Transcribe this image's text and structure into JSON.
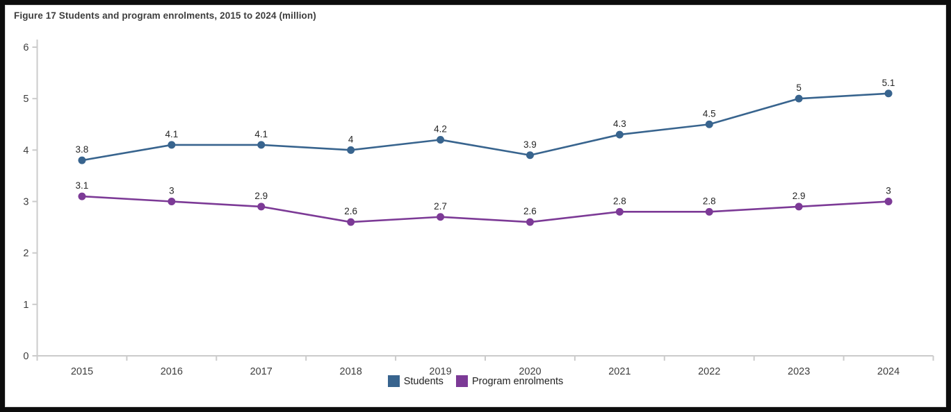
{
  "figure": {
    "title": "Figure 17 Students and program enrolments, 2015 to 2024 (million)"
  },
  "chart_data": {
    "type": "line",
    "title": "Figure 17 Students and program enrolments, 2015 to 2024 (million)",
    "categories": [
      "2015",
      "2016",
      "2017",
      "2018",
      "2019",
      "2020",
      "2021",
      "2022",
      "2023",
      "2024"
    ],
    "series": [
      {
        "name": "Students",
        "color": "#38648e",
        "values": [
          3.8,
          4.1,
          4.1,
          4,
          4.2,
          3.9,
          4.3,
          4.5,
          5,
          5.1
        ]
      },
      {
        "name": "Program enrolments",
        "color": "#7c3a96",
        "values": [
          3.1,
          3,
          2.9,
          2.6,
          2.7,
          2.6,
          2.8,
          2.8,
          2.9,
          3
        ]
      }
    ],
    "xlabel": "",
    "ylabel": "",
    "ylim": [
      0,
      6
    ],
    "yticks": [
      0,
      1,
      2,
      3,
      4,
      5,
      6
    ],
    "grid": false,
    "data_labels": true,
    "legend_position": "bottom",
    "axis_color": "#cbcbcb",
    "tick_label_color": "#3d3d3d",
    "data_label_color": "#262626"
  }
}
